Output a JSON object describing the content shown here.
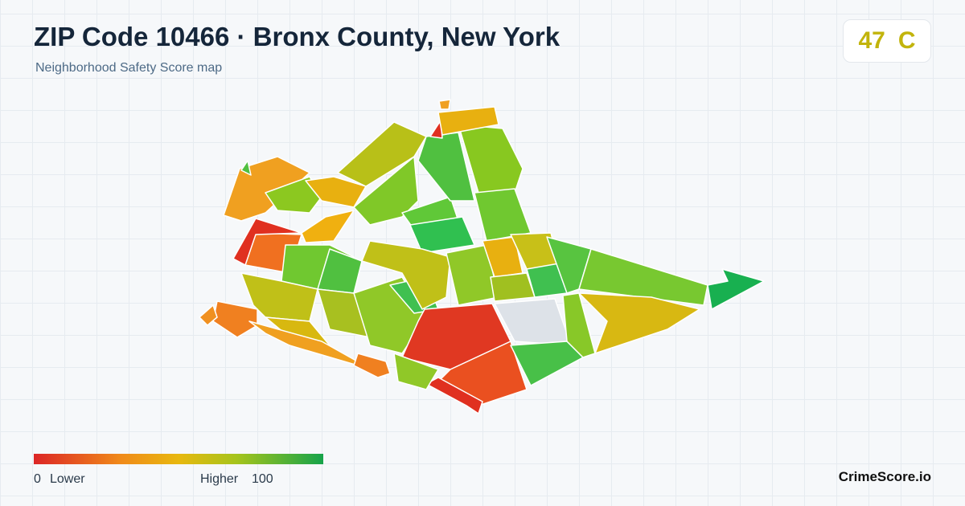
{
  "header": {
    "title": "ZIP Code 10466 · Bronx County, New York",
    "subtitle": "Neighborhood Safety Score map"
  },
  "score": {
    "value": 47,
    "grade": "C"
  },
  "legend": {
    "min": 0,
    "min_label": "Lower",
    "max_label": "Higher",
    "max": 100
  },
  "brand": "CrimeScore.io"
}
